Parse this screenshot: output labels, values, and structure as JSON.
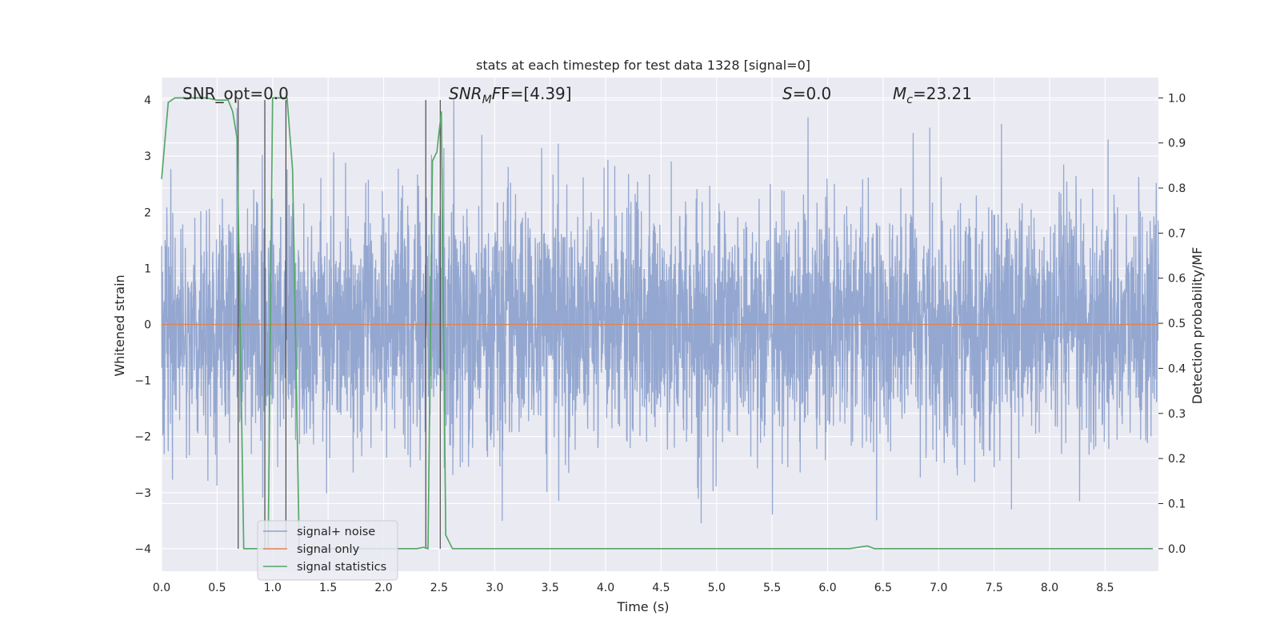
{
  "chart_data": {
    "type": "line",
    "title": "stats at each timestep for test data 1328 [signal=0]",
    "xlabel": "Time (s)",
    "ylabel_left": "Whitened strain",
    "ylabel_right": "Detection probability/MF",
    "xlim": [
      0.0,
      8.98
    ],
    "ylim_left": [
      -4.4,
      4.4
    ],
    "ylim_right": [
      -0.05,
      1.045
    ],
    "xticks": [
      "0.0",
      "0.5",
      "1.0",
      "1.5",
      "2.0",
      "2.5",
      "3.0",
      "3.5",
      "4.0",
      "4.5",
      "5.0",
      "5.5",
      "6.0",
      "6.5",
      "7.0",
      "7.5",
      "8.0",
      "8.5"
    ],
    "yticks_left": [
      "4",
      "3",
      "2",
      "1",
      "0",
      "−1",
      "−2",
      "−3",
      "−4"
    ],
    "yticks_right": [
      "1.0",
      "0.9",
      "0.8",
      "0.7",
      "0.6",
      "0.5",
      "0.4",
      "0.3",
      "0.2",
      "0.1",
      "0.0"
    ],
    "grid": true,
    "legend_position": "lower-left",
    "annotations": {
      "snr_opt": "SNR_opt=0.0",
      "snr_mf_sym": "SNR",
      "snr_mf_sub": "M",
      "snr_mf_rest": "F=[4.39]",
      "s_sym": "S",
      "s_rest": "=0.0",
      "mc_sym": "M",
      "mc_sub": "c",
      "mc_rest": "=23.21"
    },
    "series": [
      {
        "name": "signal+ noise",
        "color": "#8fa3cd",
        "axis": "left",
        "description_samples": {
          "envelope_abs_max": 4.0,
          "typical_range": [
            -1.6,
            1.6
          ]
        }
      },
      {
        "name": "signal only",
        "color": "#dd8452",
        "axis": "left",
        "x": [
          0.0,
          8.98
        ],
        "y": [
          0.0,
          0.0
        ]
      },
      {
        "name": "signal statistics",
        "color": "#55a868",
        "axis": "right",
        "x": [
          0.0,
          0.06,
          0.12,
          0.2,
          0.3,
          0.4,
          0.5,
          0.6,
          0.64,
          0.68,
          0.74,
          0.8,
          0.9,
          0.96,
          1.0,
          1.04,
          1.1,
          1.13,
          1.18,
          1.24,
          1.3,
          1.5,
          1.8,
          2.1,
          2.3,
          2.36,
          2.4,
          2.44,
          2.48,
          2.52,
          2.56,
          2.62,
          2.7,
          3.0,
          4.0,
          5.0,
          6.0,
          6.2,
          6.3,
          6.36,
          6.42,
          6.5,
          7.0,
          8.0,
          8.93
        ],
        "y": [
          0.82,
          0.99,
          1.0,
          1.0,
          1.0,
          1.0,
          0.995,
          0.995,
          0.97,
          0.91,
          0.0,
          0.0,
          0.0,
          0.0,
          1.0,
          1.0,
          1.0,
          1.0,
          0.84,
          0.0,
          0.0,
          0.0,
          0.0,
          0.0,
          0.0,
          0.003,
          0.0,
          0.86,
          0.88,
          0.97,
          0.03,
          0.0,
          0.0,
          0.0,
          0.0,
          0.0,
          0.0,
          0.0,
          0.004,
          0.006,
          0.0,
          0.0,
          0.0,
          0.0,
          0.0
        ]
      }
    ],
    "vertical_markers_x": [
      0.69,
      0.93,
      1.12,
      2.38,
      2.51
    ]
  }
}
